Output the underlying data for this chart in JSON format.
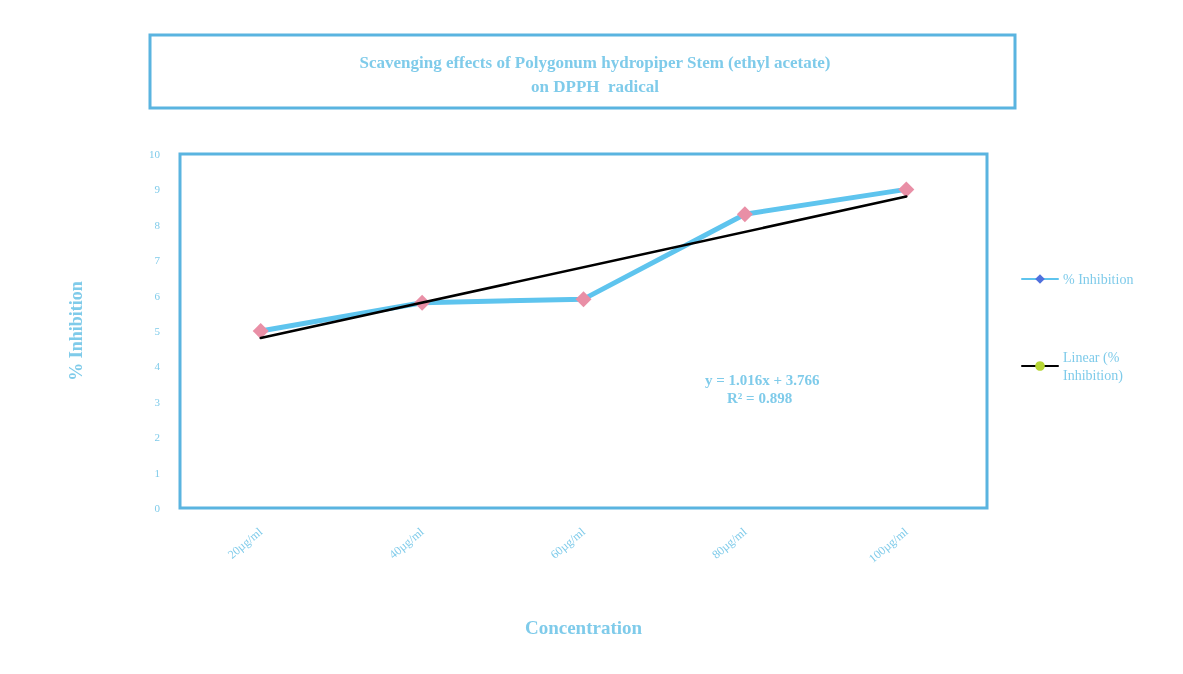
{
  "chart_data": {
    "type": "line",
    "title": "Scavenging effects of Polygonum hydropiper Stem (ethyl acetate)\non DPPH  radical",
    "xlabel": "Concentration",
    "ylabel": "% Inhibition",
    "categories": [
      "20µg/ml",
      "40µg/ml",
      "60µg/ml",
      "80µg/ml",
      "100µg/ml"
    ],
    "series": [
      {
        "name": "% Inhibition",
        "color": "#5ec4ee",
        "colors": [
          "#e98fa6",
          "#e98fa6",
          "#e98fa6",
          "#e98fa6",
          "#e98fa6"
        ],
        "marker": "diamond",
        "values": [
          5.0,
          5.8,
          5.9,
          8.3,
          9.0
        ]
      },
      {
        "name": "Linear (% Inhibition)",
        "color": "#000000",
        "marker": "none",
        "x": [
          "20µg/ml",
          "100µg/ml"
        ],
        "values": [
          4.8,
          8.8
        ]
      }
    ],
    "ylim": [
      0,
      10
    ],
    "yticks": [
      0,
      1,
      2,
      3,
      4,
      5,
      6,
      7,
      8,
      9,
      10
    ],
    "grid": false,
    "legend": "right",
    "annotations": [
      "y = 1.016x + 3.766",
      "R² = 0.898"
    ]
  }
}
